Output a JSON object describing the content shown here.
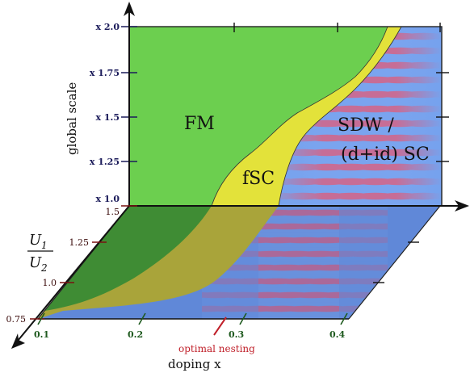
{
  "regions": {
    "fm": "FM",
    "fsc": "fSC",
    "sdw_line1": "SDW /",
    "sdw_line2": "(d+id) SC"
  },
  "vertical_axis": {
    "label": "global scale",
    "ticks": [
      "x 2.0",
      "x 1.75",
      "x 1.5",
      "x 1.25",
      "x 1.0"
    ]
  },
  "ratio_axis": {
    "numerator": "U",
    "numerator_sub": "1",
    "denominator": "U",
    "denominator_sub": "2",
    "ticks": [
      "1.5",
      "1.25",
      "1.0",
      "0.75"
    ]
  },
  "doping_axis": {
    "label": "doping x",
    "ticks": [
      "0.1",
      "0.2",
      "0.3",
      "0.4"
    ]
  },
  "annotation": {
    "optimal_nesting": "optimal nesting"
  },
  "colors": {
    "fm_green": "#6ccf4f",
    "fm_green_dark": "#3f8f32",
    "fsc_yellow": "#e3e23a",
    "fsc_yellow_dark": "#a8a040",
    "sdw_blue": "#76a2ee",
    "sdw_blue_dark": "#5b82d4",
    "stripe_red": "#e0506a",
    "nesting_red": "#c0202a"
  }
}
